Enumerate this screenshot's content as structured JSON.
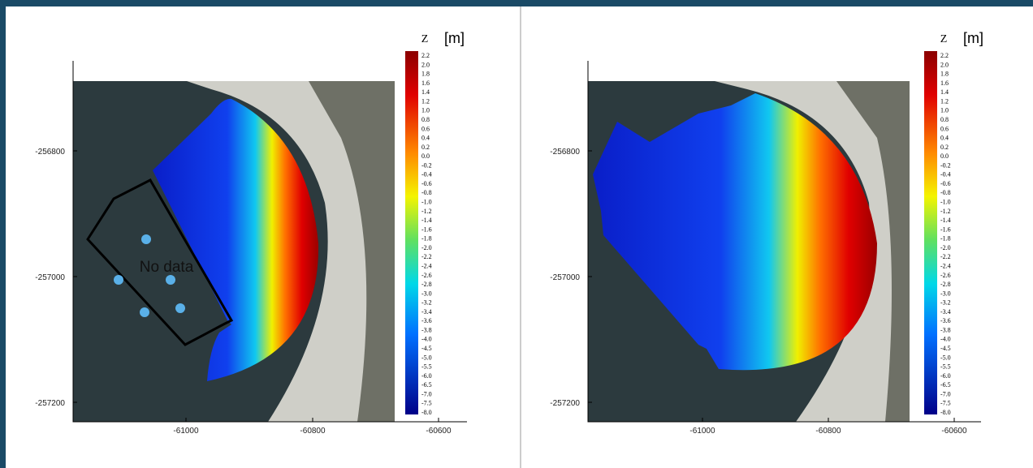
{
  "panels": [
    {
      "colorbar": {
        "title": "Z",
        "unit": "[m]",
        "labels": [
          "2.2",
          "2.0",
          "1.8",
          "1.6",
          "1.4",
          "1.2",
          "1.0",
          "0.8",
          "0.6",
          "0.4",
          "0.2",
          "0.0",
          "-0.2",
          "-0.4",
          "-0.6",
          "-0.8",
          "-1.0",
          "-1.2",
          "-1.4",
          "-1.6",
          "-1.8",
          "-2.0",
          "-2.2",
          "-2.4",
          "-2.6",
          "-2.8",
          "-3.0",
          "-3.2",
          "-3.4",
          "-3.6",
          "-3.8",
          "-4.0",
          "-4.5",
          "-5.0",
          "-5.5",
          "-6.0",
          "-6.5",
          "-7.0",
          "-7.5",
          "-8.0"
        ]
      },
      "yticks": [
        "-256800",
        "-257000",
        "-257200"
      ],
      "xticks": [
        "-61000",
        "-60800",
        "-60600"
      ],
      "annotation": "No data"
    },
    {
      "colorbar": {
        "title": "Z",
        "unit": "[m]",
        "labels": [
          "2.2",
          "2.0",
          "1.8",
          "1.6",
          "1.4",
          "1.2",
          "1.0",
          "0.8",
          "0.6",
          "0.4",
          "0.2",
          "0.0",
          "-0.2",
          "-0.4",
          "-0.6",
          "-0.8",
          "-1.0",
          "-1.2",
          "-1.4",
          "-1.6",
          "-1.8",
          "-2.0",
          "-2.2",
          "-2.4",
          "-2.6",
          "-2.8",
          "-3.0",
          "-3.2",
          "-3.4",
          "-3.6",
          "-3.8",
          "-4.0",
          "-4.5",
          "-5.0",
          "-5.5",
          "-6.0",
          "-6.5",
          "-7.0",
          "-7.5",
          "-8.0"
        ]
      },
      "yticks": [
        "-256800",
        "-257000",
        "-257200"
      ],
      "xticks": [
        "-61000",
        "-60800",
        "-60600"
      ]
    }
  ]
}
